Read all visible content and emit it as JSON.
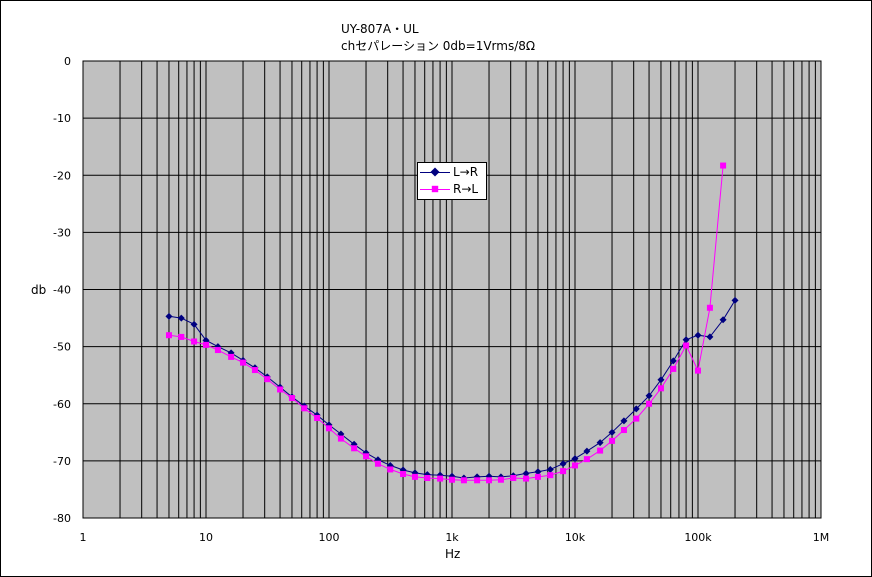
{
  "chart_data": {
    "type": "line",
    "title": "UY-807A・UL",
    "subtitle": "chセパレーション 0db=1Vrms/8Ω",
    "xlabel": "Hz",
    "ylabel": "db",
    "x_scale": "log",
    "xlim": [
      1,
      1000000
    ],
    "ylim": [
      -80,
      0
    ],
    "x_ticks": [
      1,
      10,
      100,
      1000,
      10000,
      100000,
      1000000
    ],
    "x_tick_labels": [
      "1",
      "10",
      "100",
      "1k",
      "10k",
      "100k",
      "1M"
    ],
    "y_ticks": [
      0,
      -10,
      -20,
      -30,
      -40,
      -50,
      -60,
      -70,
      -80
    ],
    "y_tick_labels": [
      "0",
      "-10",
      "-20",
      "-30",
      "-40",
      "-50",
      "-60",
      "-70",
      "-80"
    ],
    "grid": true,
    "legend_position": "center",
    "series": [
      {
        "name": "L→R",
        "color": "#000080",
        "marker": "diamond",
        "points": [
          [
            5,
            -44.7
          ],
          [
            6.3,
            -45
          ],
          [
            8,
            -46.1
          ],
          [
            10,
            -48.9
          ],
          [
            12.5,
            -50
          ],
          [
            16,
            -51.1
          ],
          [
            20,
            -52.4
          ],
          [
            25,
            -53.7
          ],
          [
            31.5,
            -55.3
          ],
          [
            40,
            -57.1
          ],
          [
            50,
            -58.8
          ],
          [
            63,
            -60.4
          ],
          [
            80,
            -62
          ],
          [
            100,
            -63.7
          ],
          [
            125,
            -65.3
          ],
          [
            160,
            -67.1
          ],
          [
            200,
            -68.6
          ],
          [
            250,
            -69.8
          ],
          [
            315,
            -70.8
          ],
          [
            400,
            -71.6
          ],
          [
            500,
            -72.1
          ],
          [
            630,
            -72.4
          ],
          [
            800,
            -72.5
          ],
          [
            1000,
            -72.7
          ],
          [
            1250,
            -73
          ],
          [
            1600,
            -72.8
          ],
          [
            2000,
            -72.7
          ],
          [
            2500,
            -72.8
          ],
          [
            3150,
            -72.6
          ],
          [
            4000,
            -72.2
          ],
          [
            5000,
            -71.9
          ],
          [
            6300,
            -71.5
          ],
          [
            8000,
            -70.5
          ],
          [
            10000,
            -69.6
          ],
          [
            12500,
            -68.3
          ],
          [
            16000,
            -66.8
          ],
          [
            20000,
            -65
          ],
          [
            25000,
            -63
          ],
          [
            31500,
            -60.9
          ],
          [
            40000,
            -58.6
          ],
          [
            50000,
            -55.8
          ],
          [
            63000,
            -52.5
          ],
          [
            80000,
            -48.8
          ],
          [
            100000,
            -48
          ],
          [
            125000,
            -48.3
          ],
          [
            160000,
            -45.3
          ],
          [
            200000,
            -41.9
          ]
        ]
      },
      {
        "name": "R→L",
        "color": "#ff00ff",
        "marker": "square",
        "points": [
          [
            5,
            -48
          ],
          [
            6.3,
            -48.3
          ],
          [
            8,
            -49.1
          ],
          [
            10,
            -49.7
          ],
          [
            12.5,
            -50.6
          ],
          [
            16,
            -51.8
          ],
          [
            20,
            -52.8
          ],
          [
            25,
            -54.1
          ],
          [
            31.5,
            -55.7
          ],
          [
            40,
            -57.5
          ],
          [
            50,
            -59
          ],
          [
            63,
            -60.8
          ],
          [
            80,
            -62.5
          ],
          [
            100,
            -64.3
          ],
          [
            125,
            -66.1
          ],
          [
            160,
            -67.8
          ],
          [
            200,
            -69.2
          ],
          [
            250,
            -70.5
          ],
          [
            315,
            -71.5
          ],
          [
            400,
            -72.3
          ],
          [
            500,
            -72.8
          ],
          [
            630,
            -73
          ],
          [
            800,
            -73.1
          ],
          [
            1000,
            -73.3
          ],
          [
            1250,
            -73.4
          ],
          [
            1600,
            -73.4
          ],
          [
            2000,
            -73.4
          ],
          [
            2500,
            -73.3
          ],
          [
            3150,
            -73
          ],
          [
            4000,
            -73.1
          ],
          [
            5000,
            -72.8
          ],
          [
            6300,
            -72.5
          ],
          [
            8000,
            -71.8
          ],
          [
            10000,
            -70.8
          ],
          [
            12500,
            -69.7
          ],
          [
            16000,
            -68.2
          ],
          [
            20000,
            -66.5
          ],
          [
            25000,
            -64.6
          ],
          [
            31500,
            -62.6
          ],
          [
            40000,
            -60
          ],
          [
            50000,
            -57.3
          ],
          [
            63000,
            -53.9
          ],
          [
            80000,
            -49.8
          ],
          [
            100000,
            -54.2
          ],
          [
            125000,
            -43.2
          ],
          [
            160000,
            -18.3
          ]
        ]
      }
    ]
  }
}
